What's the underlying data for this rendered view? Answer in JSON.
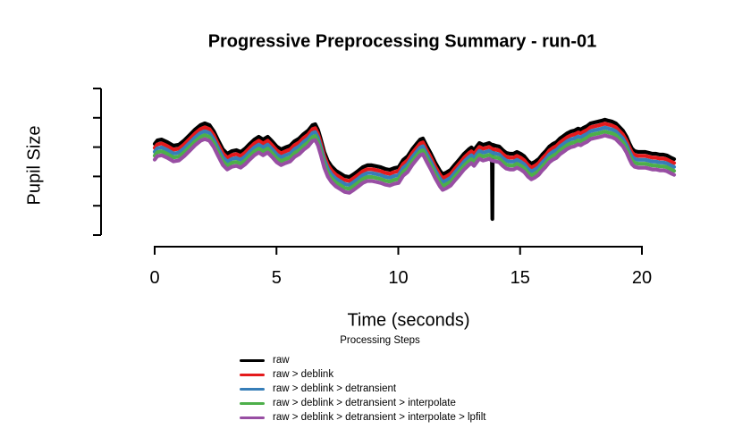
{
  "title": "Progressive Preprocessing Summary - run-01",
  "x_axis": {
    "label": "Time (seconds)",
    "ticks": [
      "0",
      "5",
      "10",
      "15",
      "20"
    ]
  },
  "y_axis": {
    "label": "Pupil Size",
    "tick_count": 6,
    "tick_labels_shown": false
  },
  "legend": {
    "title": "Processing Steps",
    "items": [
      {
        "label": "raw",
        "color": "#000000"
      },
      {
        "label": "raw > deblink",
        "color": "#E41A1C"
      },
      {
        "label": "raw > deblink > detransient",
        "color": "#377EB8"
      },
      {
        "label": "raw > deblink > detransient > interpolate",
        "color": "#4DAF4A"
      },
      {
        "label": "raw > deblink > detransient > interpolate > lpfilt",
        "color": "#984EA3"
      }
    ]
  },
  "chart_data": {
    "type": "line",
    "title": "Progressive Preprocessing Summary - run-01",
    "xlabel": "Time (seconds)",
    "ylabel": "Pupil Size",
    "xlim": [
      0,
      21.4
    ],
    "x_ticks": [
      0,
      5,
      10,
      15,
      20
    ],
    "y_axis_numeric_labels": false,
    "grid": false,
    "legend_position": "bottom",
    "y_units": "normalized pupil size: 0 = bottom y tick, 1 = top y tick",
    "description": "Five nearly identical traces of the same pupil time series, each progressive preprocessing stage drawn with a constant downward offset; only the raw (black) trace has a sharp downward blink artifact near t=13.84 s.",
    "t_seconds": [
      0.0,
      0.11,
      0.29,
      0.52,
      0.77,
      0.99,
      1.21,
      1.44,
      1.66,
      1.88,
      2.06,
      2.25,
      2.43,
      2.61,
      2.8,
      2.98,
      3.17,
      3.35,
      3.53,
      3.72,
      3.9,
      4.09,
      4.27,
      4.45,
      4.64,
      4.82,
      5.01,
      5.19,
      5.37,
      5.56,
      5.74,
      5.93,
      6.11,
      6.3,
      6.48,
      6.59,
      6.7,
      6.81,
      6.96,
      7.11,
      7.25,
      7.44,
      7.62,
      7.8,
      7.99,
      8.17,
      8.36,
      8.54,
      8.73,
      8.91,
      9.09,
      9.28,
      9.46,
      9.65,
      9.83,
      10.01,
      10.2,
      10.38,
      10.57,
      10.75,
      10.9,
      11.01,
      11.16,
      11.34,
      11.52,
      11.71,
      11.82,
      11.97,
      12.15,
      12.33,
      12.52,
      12.7,
      12.89,
      13.0,
      13.11,
      13.22,
      13.33,
      13.48,
      13.62,
      13.73,
      13.84,
      13.99,
      14.14,
      14.29,
      14.43,
      14.58,
      14.73,
      14.87,
      15.02,
      15.17,
      15.32,
      15.46,
      15.61,
      15.76,
      15.91,
      16.05,
      16.2,
      16.35,
      16.49,
      16.64,
      16.79,
      16.94,
      17.08,
      17.23,
      17.38,
      17.49,
      17.6,
      17.75,
      17.89,
      18.04,
      18.19,
      18.34,
      18.48,
      18.63,
      18.78,
      18.93,
      19.07,
      19.22,
      19.37,
      19.48,
      19.59,
      19.7,
      19.85,
      19.99,
      20.14,
      20.29,
      20.43,
      20.58,
      20.73,
      20.88,
      21.02,
      21.17,
      21.32
    ],
    "base_values_au": [
      0.622,
      0.646,
      0.652,
      0.634,
      0.61,
      0.616,
      0.646,
      0.683,
      0.72,
      0.75,
      0.762,
      0.75,
      0.707,
      0.646,
      0.585,
      0.555,
      0.573,
      0.579,
      0.567,
      0.591,
      0.622,
      0.652,
      0.671,
      0.652,
      0.671,
      0.64,
      0.604,
      0.585,
      0.598,
      0.61,
      0.64,
      0.659,
      0.689,
      0.713,
      0.75,
      0.756,
      0.72,
      0.659,
      0.567,
      0.506,
      0.47,
      0.439,
      0.421,
      0.402,
      0.396,
      0.415,
      0.439,
      0.463,
      0.476,
      0.476,
      0.47,
      0.463,
      0.451,
      0.445,
      0.457,
      0.463,
      0.512,
      0.537,
      0.585,
      0.622,
      0.652,
      0.659,
      0.61,
      0.555,
      0.494,
      0.439,
      0.415,
      0.427,
      0.445,
      0.482,
      0.518,
      0.555,
      0.585,
      0.598,
      0.579,
      0.604,
      0.628,
      0.616,
      0.622,
      0.628,
      0.616,
      0.61,
      0.604,
      0.579,
      0.561,
      0.555,
      0.555,
      0.567,
      0.555,
      0.537,
      0.506,
      0.488,
      0.5,
      0.518,
      0.549,
      0.573,
      0.604,
      0.622,
      0.634,
      0.659,
      0.677,
      0.695,
      0.707,
      0.713,
      0.726,
      0.72,
      0.732,
      0.744,
      0.762,
      0.768,
      0.774,
      0.78,
      0.787,
      0.78,
      0.774,
      0.762,
      0.738,
      0.713,
      0.671,
      0.628,
      0.591,
      0.573,
      0.567,
      0.567,
      0.567,
      0.561,
      0.555,
      0.555,
      0.549,
      0.549,
      0.543,
      0.53,
      0.518
    ],
    "series": [
      {
        "name": "raw",
        "color": "#000000",
        "offset_step": 0,
        "has_blink_artifact": true
      },
      {
        "name": "raw > deblink",
        "color": "#E41A1C",
        "offset_step": 1,
        "has_blink_artifact": false
      },
      {
        "name": "raw > deblink > detransient",
        "color": "#377EB8",
        "offset_step": 2,
        "has_blink_artifact": false
      },
      {
        "name": "raw > deblink > detransient > interpolate",
        "color": "#4DAF4A",
        "offset_step": 3,
        "has_blink_artifact": false
      },
      {
        "name": "raw > deblink > detransient > interpolate > lpfilt",
        "color": "#984EA3",
        "offset_step": 4,
        "has_blink_artifact": false
      }
    ],
    "blink_artifact": {
      "t_seconds": 13.84,
      "bottom_au": 0.11,
      "width_seconds": 0.04
    }
  }
}
